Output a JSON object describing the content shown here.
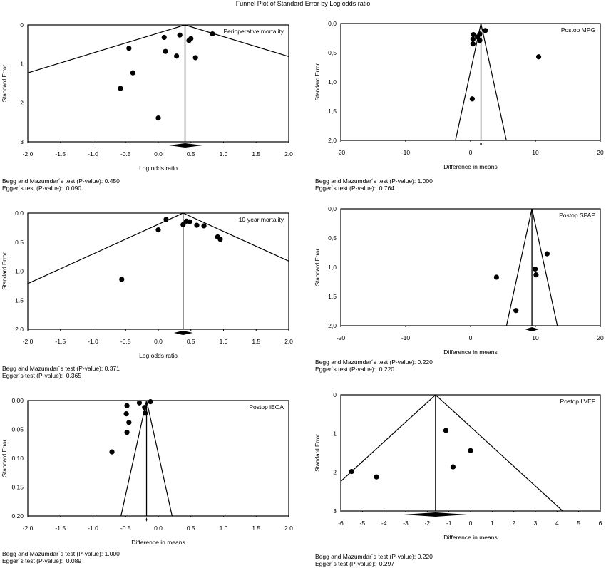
{
  "title": "Funnel Plot of Standard Error by Log odds ratio",
  "chart_data": [
    {
      "type": "scatter",
      "label": "Perioperative mortality",
      "xlabel": "Log odds ratio",
      "ylabel": "Standard Error",
      "xlim": [
        -2,
        2
      ],
      "ylim": [
        0,
        3
      ],
      "xticks": [
        -2,
        -1.5,
        -1,
        -0.5,
        0,
        0.5,
        1,
        1.5,
        2
      ],
      "xtick_labels": [
        "-2.0",
        "-1.5",
        "-1.0",
        "-0.5",
        "0.0",
        "0.5",
        "1.0",
        "1.5",
        "2.0"
      ],
      "yticks": [
        0,
        1,
        2,
        3
      ],
      "ytick_labels": [
        "0",
        "1",
        "2",
        "3"
      ],
      "summary": 0.41,
      "summary_ci": [
        0.16,
        0.68
      ],
      "points": [
        [
          0.09,
          0.32
        ],
        [
          0.33,
          0.26
        ],
        [
          0.83,
          0.23
        ],
        [
          0.47,
          0.4
        ],
        [
          0.5,
          0.35
        ],
        [
          -0.45,
          0.6
        ],
        [
          0.11,
          0.68
        ],
        [
          0.28,
          0.8
        ],
        [
          0.57,
          0.84
        ],
        [
          -0.39,
          1.23
        ],
        [
          -0.58,
          1.63
        ],
        [
          0.0,
          2.39
        ]
      ],
      "begg": "Begg and Mazumdar´s test (P-value): 0.450",
      "egger": "Egger´s test (P-value):  0.090"
    },
    {
      "type": "scatter",
      "label": "Postop MPG",
      "xlabel": "Difference in means",
      "ylabel": "Standard Error",
      "xlim": [
        -20,
        20
      ],
      "ylim": [
        0,
        2
      ],
      "xticks": [
        -20,
        -10,
        0,
        10,
        20
      ],
      "xtick_labels": [
        "-20",
        "-10",
        "0",
        "10",
        "20"
      ],
      "yticks": [
        0,
        0.5,
        1,
        1.5,
        2
      ],
      "ytick_labels": [
        "0,0",
        "0,5",
        "1,0",
        "1,5",
        "2,0"
      ],
      "summary": 1.6,
      "summary_ci": [
        1.45,
        1.75
      ],
      "points": [
        [
          2.27,
          0.12
        ],
        [
          1.43,
          0.18
        ],
        [
          0.44,
          0.19
        ],
        [
          1.06,
          0.23
        ],
        [
          0.37,
          0.27
        ],
        [
          1.43,
          0.29
        ],
        [
          0.37,
          0.35
        ],
        [
          10.5,
          0.57
        ],
        [
          0.26,
          1.29
        ]
      ],
      "begg": "Begg and Mazumdar´s test (P-value): 1.000",
      "egger": "Egger´s test (P-value):  0.764"
    },
    {
      "type": "scatter",
      "label": "10-year mortality",
      "xlabel": "Log odds ratio",
      "ylabel": "Standard Error",
      "xlim": [
        -2,
        2
      ],
      "ylim": [
        0,
        2
      ],
      "xticks": [
        -2,
        -1.5,
        -1,
        -0.5,
        0,
        0.5,
        1,
        1.5,
        2
      ],
      "xtick_labels": [
        "-2.0",
        "-1.5",
        "-1.0",
        "-0.5",
        "0.0",
        "0.5",
        "1.0",
        "1.5",
        "2.0"
      ],
      "yticks": [
        0,
        0.5,
        1,
        1.5,
        2
      ],
      "ytick_labels": [
        "0.0",
        "0.5",
        "1.0",
        "1.5",
        "2.0"
      ],
      "summary": 0.38,
      "summary_ci": [
        0.24,
        0.53
      ],
      "points": [
        [
          0.12,
          0.11
        ],
        [
          0.0,
          0.29
        ],
        [
          0.38,
          0.2
        ],
        [
          0.43,
          0.14
        ],
        [
          0.48,
          0.15
        ],
        [
          0.59,
          0.21
        ],
        [
          0.7,
          0.22
        ],
        [
          0.91,
          0.41
        ],
        [
          0.95,
          0.45
        ],
        [
          -0.56,
          1.14
        ]
      ],
      "begg": "Begg and Mazumdar´s test (P-value): 0.371",
      "egger": "Egger´s test (P-value):  0.365"
    },
    {
      "type": "scatter",
      "label": "Postop SPAP",
      "xlabel": "Difference in means",
      "ylabel": "Standard Error",
      "xlim": [
        -20,
        20
      ],
      "ylim": [
        0,
        2
      ],
      "xticks": [
        -20,
        -10,
        0,
        10,
        20
      ],
      "xtick_labels": [
        "-20",
        "-10",
        "0",
        "10",
        "20"
      ],
      "yticks": [
        0,
        0.5,
        1,
        1.5,
        2
      ],
      "ytick_labels": [
        "0,0",
        "0,5",
        "1,0",
        "1,5",
        "2,0"
      ],
      "summary": 9.46,
      "summary_ci": [
        8.4,
        10.5
      ],
      "points": [
        [
          11.8,
          0.77
        ],
        [
          9.96,
          1.03
        ],
        [
          10.1,
          1.13
        ],
        [
          4.0,
          1.17
        ],
        [
          7.0,
          1.74
        ]
      ],
      "begg": "Begg and Mazumdar´s test (P-value): 0.220",
      "egger": "Egger´s test (P-value):  0.220"
    },
    {
      "type": "scatter",
      "label": "Postop iEOA",
      "xlabel": "Difference in means",
      "ylabel": "Standard Error",
      "xlim": [
        -2,
        2
      ],
      "ylim": [
        0,
        0.2
      ],
      "xticks": [
        -2,
        -1.5,
        -1,
        -0.5,
        0,
        0.5,
        1,
        1.5,
        2
      ],
      "xtick_labels": [
        "-2.0",
        "-1.5",
        "-1.0",
        "-0.5",
        "0.0",
        "0.5",
        "1.0",
        "1.5",
        "2.0"
      ],
      "yticks": [
        0,
        0.05,
        0.1,
        0.15,
        0.2
      ],
      "ytick_labels": [
        "0.00",
        "0.05",
        "0.10",
        "0.15",
        "0.20"
      ],
      "summary": -0.18,
      "summary_ci": [
        -0.19,
        -0.17
      ],
      "points": [
        [
          -0.12,
          0.002
        ],
        [
          -0.29,
          0.004
        ],
        [
          -0.48,
          0.009
        ],
        [
          -0.21,
          0.012
        ],
        [
          -0.2,
          0.022
        ],
        [
          -0.49,
          0.023
        ],
        [
          -0.45,
          0.038
        ],
        [
          -0.48,
          0.055
        ],
        [
          -0.71,
          0.089
        ]
      ],
      "begg": "Begg and Mazumdar´s test (P-value): 1.000",
      "egger": "Egger´s test (P-value):  0.089"
    },
    {
      "type": "scatter",
      "label": "Postop LVEF",
      "xlabel": "Difference in means",
      "ylabel": "Standard Error",
      "xlim": [
        -6,
        6
      ],
      "ylim": [
        0,
        3
      ],
      "xticks": [
        -6,
        -5,
        -4,
        -3,
        -2,
        -1,
        0,
        1,
        2,
        3,
        4,
        5,
        6
      ],
      "xtick_labels": [
        "-6",
        "-5",
        "-4",
        "-3",
        "-2",
        "-1",
        "0",
        "1",
        "2",
        "3",
        "4",
        "5",
        "6"
      ],
      "yticks": [
        0,
        1,
        2,
        3
      ],
      "ytick_labels": [
        "0",
        "1",
        "2",
        "3"
      ],
      "summary": -1.62,
      "summary_ci": [
        -3.1,
        -0.15
      ],
      "points": [
        [
          -1.14,
          0.92
        ],
        [
          0.0,
          1.44
        ],
        [
          -0.81,
          1.86
        ],
        [
          -5.5,
          1.98
        ],
        [
          -4.35,
          2.12
        ]
      ],
      "begg": "Begg and Mazumdar´s test (P-value): 0.220",
      "egger": "Egger´s test (P-value):  0.297"
    }
  ]
}
